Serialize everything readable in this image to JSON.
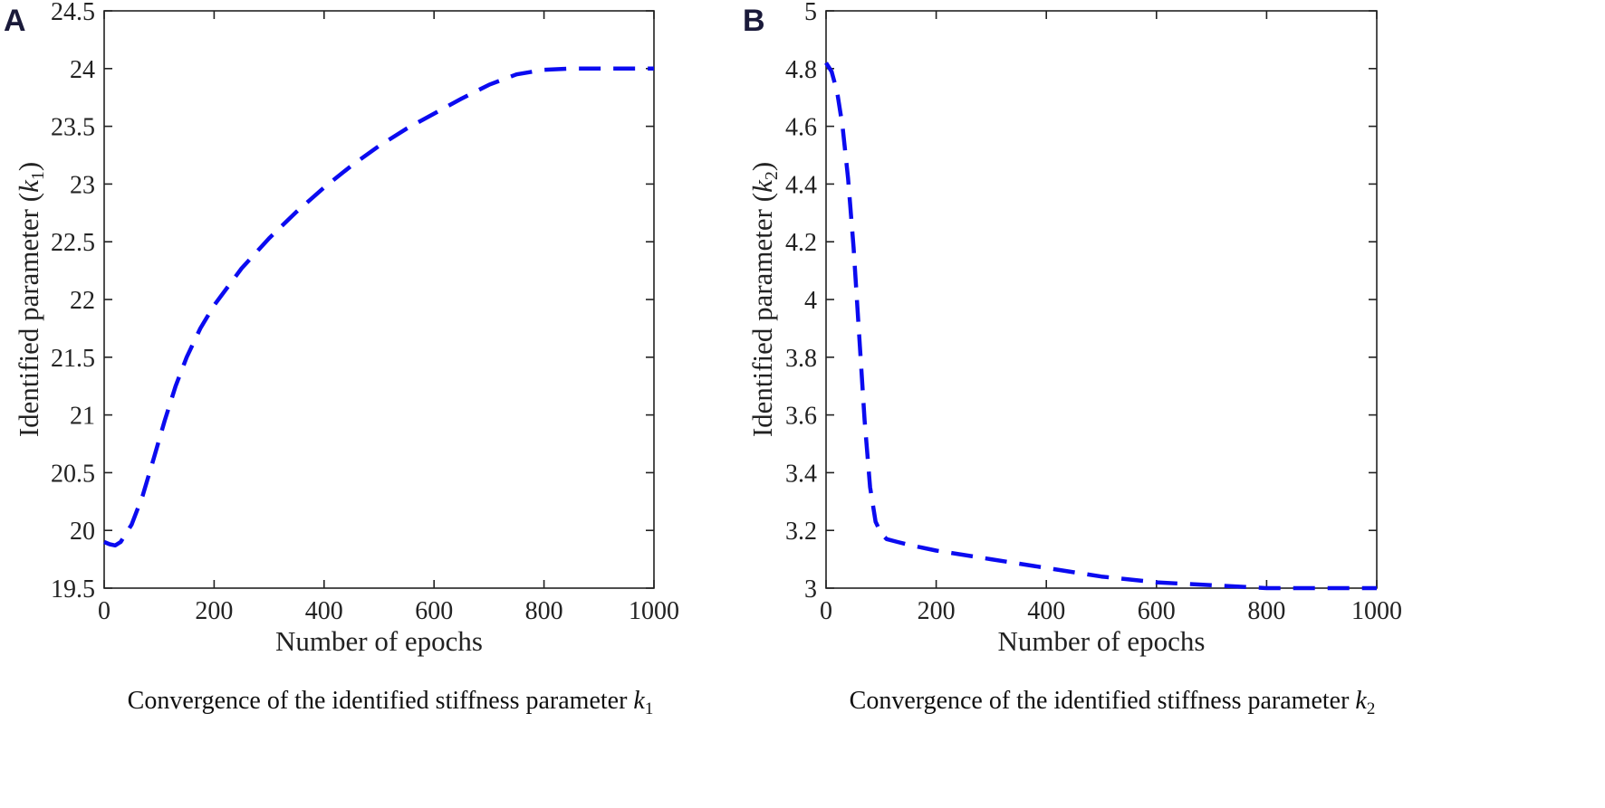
{
  "figure": {
    "panels": [
      {
        "letter": "A",
        "ylabel_main": "Identified parameter (",
        "ylabel_var": "k",
        "ylabel_sub": "1",
        "ylabel_close": ")",
        "caption_main": "Convergence of the identified stiffness parameter ",
        "caption_var": "k",
        "caption_sub": "1"
      },
      {
        "letter": "B",
        "ylabel_main": "Identified parameter (",
        "ylabel_var": "k",
        "ylabel_sub": "2",
        "ylabel_close": ")",
        "caption_main": "Convergence of the identified stiffness parameter ",
        "caption_var": "k",
        "caption_sub": "2"
      }
    ]
  },
  "chart_data": [
    {
      "type": "line",
      "panel": "A",
      "xlabel": "Number of epochs",
      "ylabel": "Identified parameter (k1)",
      "xlim": [
        0,
        1000
      ],
      "ylim": [
        19.5,
        24.5
      ],
      "xticks": [
        "0",
        "200",
        "400",
        "600",
        "800",
        "1000"
      ],
      "yticks": [
        "19.5",
        "20",
        "20.5",
        "21",
        "21.5",
        "22",
        "22.5",
        "23",
        "23.5",
        "24",
        "24.5"
      ],
      "grid": false,
      "series_color": "#0b0bf0",
      "series_style": "dashed",
      "series": [
        {
          "x": [
            0,
            10,
            20,
            30,
            50,
            70,
            90,
            110,
            130,
            150,
            175,
            200,
            250,
            300,
            350,
            400,
            450,
            500,
            550,
            600,
            650,
            700,
            750,
            800,
            850,
            900,
            950,
            1000
          ],
          "y": [
            19.9,
            19.88,
            19.87,
            19.9,
            20.05,
            20.3,
            20.62,
            20.95,
            21.25,
            21.5,
            21.75,
            21.95,
            22.27,
            22.53,
            22.76,
            22.97,
            23.16,
            23.33,
            23.48,
            23.61,
            23.74,
            23.86,
            23.95,
            23.99,
            24.0,
            24.0,
            24.0,
            24.0
          ]
        }
      ]
    },
    {
      "type": "line",
      "panel": "B",
      "xlabel": "Number of epochs",
      "ylabel": "Identified parameter (k2)",
      "xlim": [
        0,
        1000
      ],
      "ylim": [
        3,
        5
      ],
      "xticks": [
        "0",
        "200",
        "400",
        "600",
        "800",
        "1000"
      ],
      "yticks": [
        "3",
        "3.2",
        "3.4",
        "3.6",
        "3.8",
        "4",
        "4.2",
        "4.4",
        "4.6",
        "4.8",
        "5"
      ],
      "grid": false,
      "series_color": "#0b0bf0",
      "series_style": "dashed",
      "series": [
        {
          "x": [
            0,
            10,
            20,
            30,
            40,
            50,
            60,
            70,
            80,
            90,
            100,
            110,
            130,
            150,
            200,
            300,
            400,
            500,
            600,
            700,
            800,
            900,
            1000
          ],
          "y": [
            4.82,
            4.79,
            4.72,
            4.6,
            4.42,
            4.18,
            3.88,
            3.58,
            3.35,
            3.23,
            3.19,
            3.17,
            3.16,
            3.15,
            3.13,
            3.1,
            3.07,
            3.04,
            3.02,
            3.01,
            3.0,
            3.0,
            3.0
          ]
        }
      ]
    }
  ]
}
